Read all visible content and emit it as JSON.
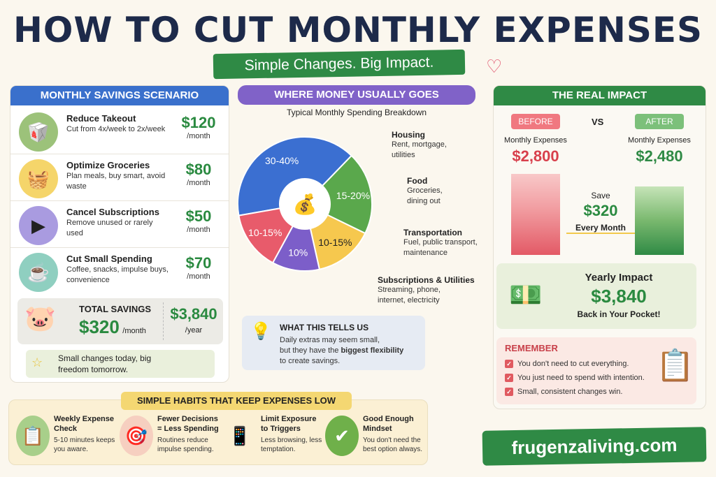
{
  "header": {
    "title": "HOW TO CUT MONTHLY EXPENSES",
    "subtitle": "Simple Changes. Big Impact."
  },
  "savings": {
    "title": "MONTHLY SAVINGS SCENARIO",
    "items": [
      {
        "title": "Reduce Takeout",
        "desc": "Cut from 4x/week to 2x/week",
        "amount": "$120",
        "unit": "/month",
        "icon": "takeout-icon",
        "color": "#9cc27a"
      },
      {
        "title": "Optimize Groceries",
        "desc": "Plan meals, buy smart, avoid waste",
        "amount": "$80",
        "unit": "/month",
        "icon": "grocery-basket-icon",
        "color": "#f5d56a"
      },
      {
        "title": "Cancel Subscriptions",
        "desc": "Remove unused or rarely used",
        "amount": "$50",
        "unit": "/month",
        "icon": "tablet-play-icon",
        "color": "#a99be0"
      },
      {
        "title": "Cut Small Spending",
        "desc": "Coffee, snacks, impulse buys, convenience",
        "amount": "$70",
        "unit": "/month",
        "icon": "coffee-cup-icon",
        "color": "#8fcfc0"
      }
    ],
    "total": {
      "label": "TOTAL SAVINGS",
      "monthly": "$320",
      "monthly_unit": "/month",
      "yearly": "$3,840",
      "yearly_unit": "/year"
    },
    "quote": "Small changes today, big freedom tomorrow."
  },
  "spending": {
    "title": "WHERE MONEY USUALLY GOES",
    "subtitle": "Typical Monthly Spending Breakdown",
    "insight": {
      "title": "WHAT THIS TELLS US",
      "line1": "Daily extras may seem small,",
      "line2_pre": "but they have the ",
      "line2_bold": "biggest flexibility",
      "line3": "to create savings."
    }
  },
  "chart_data": {
    "type": "pie",
    "title": "Typical Monthly Spending Breakdown",
    "slices": [
      {
        "name": "Housing",
        "desc": "Rent, mortgage, utilities",
        "label": "30-40%",
        "range": [
          30,
          40
        ],
        "color": "#3b6fd1"
      },
      {
        "name": "Food",
        "desc": "Groceries, dining out",
        "label": "15-20%",
        "range": [
          15,
          20
        ],
        "color": "#5aa84c"
      },
      {
        "name": "Transportation",
        "desc": "Fuel, public transport, maintenance",
        "label": "10-15%",
        "range": [
          10,
          15
        ],
        "color": "#f6c84e"
      },
      {
        "name": "Subscriptions & Utilities",
        "desc": "Streaming, phone, internet, electricity",
        "label": "10%",
        "range": [
          10,
          10
        ],
        "color": "#7c5ec9"
      },
      {
        "name": "",
        "desc": "",
        "label": "10-15%",
        "range": [
          10,
          15
        ],
        "color": "#e85b6b"
      }
    ]
  },
  "impact": {
    "title": "THE REAL IMPACT",
    "before": {
      "label": "BEFORE",
      "caption": "Monthly Expenses",
      "value": "$2,800"
    },
    "vs": "VS",
    "after": {
      "label": "AFTER",
      "caption": "Monthly Expenses",
      "value": "$2,480"
    },
    "save": {
      "pre": "Save",
      "value": "$320",
      "post": "Every Month"
    },
    "yearly": {
      "title": "Yearly Impact",
      "value": "$3,840",
      "caption": "Back in Your Pocket!"
    },
    "remember": {
      "title": "REMEMBER",
      "items": [
        "You don't need to cut everything.",
        "You just need to spend with intention.",
        "Small, consistent changes win."
      ]
    }
  },
  "habits": {
    "title": "SIMPLE HABITS THAT KEEP EXPENSES LOW",
    "items": [
      {
        "title": "Weekly Expense Check",
        "desc": "5-10 minutes keeps you aware.",
        "icon": "clipboard-checklist-icon"
      },
      {
        "title": "Fewer Decisions = Less Spending",
        "desc": "Routines reduce impulse spending.",
        "icon": "target-icon"
      },
      {
        "title": "Limit Exposure to Triggers",
        "desc": "Less browsing, less temptation.",
        "icon": "phone-icon"
      },
      {
        "title": "Good Enough Mindset",
        "desc": "You don't need the best option always.",
        "icon": "checkmark-icon"
      }
    ]
  },
  "brand": "frugenzaliving.com"
}
